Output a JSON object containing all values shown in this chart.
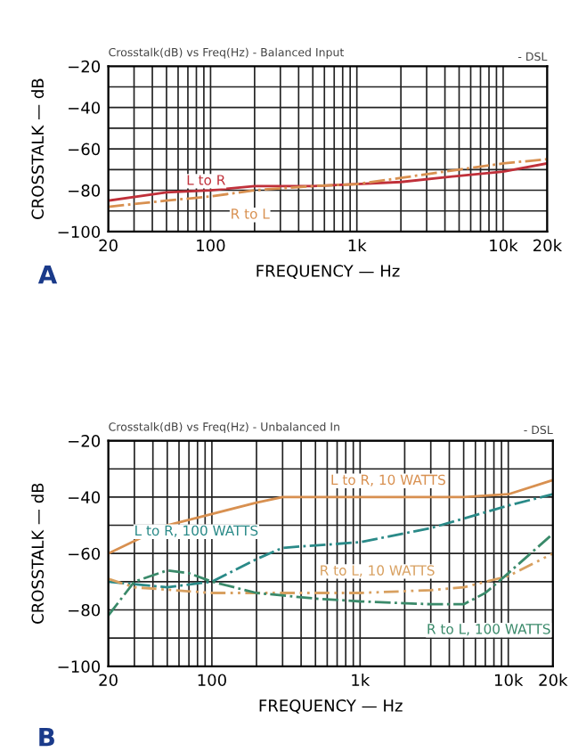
{
  "chart_data": [
    {
      "type": "line",
      "title": "Crosstalk(dB) vs Freq(Hz) - Balanced Input",
      "xlabel": "FREQUENCY — Hz",
      "ylabel": "CROSSTALK — dB",
      "log": "x",
      "grid": true,
      "legend": false,
      "xlim": [
        20,
        20000
      ],
      "ylim": [
        -100,
        -20
      ],
      "xticks": [
        {
          "value": 20,
          "label": "20"
        },
        {
          "value": 30,
          "label": null
        },
        {
          "value": 40,
          "label": null
        },
        {
          "value": 50,
          "label": null
        },
        {
          "value": 60,
          "label": null
        },
        {
          "value": 70,
          "label": null
        },
        {
          "value": 80,
          "label": null
        },
        {
          "value": 90,
          "label": null
        },
        {
          "value": 100,
          "label": "100"
        },
        {
          "value": 200,
          "label": null
        },
        {
          "value": 300,
          "label": null
        },
        {
          "value": 400,
          "label": null
        },
        {
          "value": 500,
          "label": null
        },
        {
          "value": 600,
          "label": null
        },
        {
          "value": 700,
          "label": null
        },
        {
          "value": 800,
          "label": null
        },
        {
          "value": 900,
          "label": null
        },
        {
          "value": 1000,
          "label": "1k"
        },
        {
          "value": 2000,
          "label": null
        },
        {
          "value": 3000,
          "label": null
        },
        {
          "value": 4000,
          "label": null
        },
        {
          "value": 5000,
          "label": null
        },
        {
          "value": 6000,
          "label": null
        },
        {
          "value": 7000,
          "label": null
        },
        {
          "value": 8000,
          "label": null
        },
        {
          "value": 9000,
          "label": null
        },
        {
          "value": 10000,
          "label": "10k"
        },
        {
          "value": 20000,
          "label": "20k"
        }
      ],
      "yticks": [
        -100,
        {
          "value": -90,
          "label": null
        },
        -80,
        {
          "value": -70,
          "label": null
        },
        -60,
        {
          "value": -50,
          "label": null
        },
        -40,
        {
          "value": -30,
          "label": null
        },
        -20
      ],
      "series": [
        {
          "color": "#c0303a",
          "line_style": "solid",
          "x": [
            20,
            50,
            100,
            200,
            500,
            1000,
            2000,
            5000,
            10000,
            20000
          ],
          "values": [
            -85,
            -81,
            -80,
            -78,
            -78,
            -77,
            -76,
            -73,
            -71,
            -67
          ]
        },
        {
          "color": "#d89050",
          "line_style": "dashed",
          "x": [
            20,
            50,
            100,
            200,
            500,
            1000,
            2000,
            5000,
            10000,
            20000
          ],
          "values": [
            -88,
            -85,
            -83,
            -80,
            -78,
            -77,
            -74,
            -70,
            -67,
            -65
          ]
        }
      ],
      "annotations": [
        {
          "text": "L to R",
          "x": 50,
          "y": -81
        },
        {
          "text": "R to L",
          "x": 100,
          "y": -83
        },
        "- DSL",
        "A"
      ]
    },
    {
      "type": "line",
      "title": "Crosstalk(dB) vs Freq(Hz) - Unbalanced In",
      "xlabel": "FREQUENCY — Hz",
      "ylabel": "CROSSTALK — dB",
      "log": "x",
      "grid": true,
      "legend": false,
      "xlim": [
        20,
        20000
      ],
      "ylim": [
        -100,
        -20
      ],
      "xticks": [
        {
          "value": 20,
          "label": "20"
        },
        {
          "value": 30,
          "label": null
        },
        {
          "value": 40,
          "label": null
        },
        {
          "value": 50,
          "label": null
        },
        {
          "value": 60,
          "label": null
        },
        {
          "value": 70,
          "label": null
        },
        {
          "value": 80,
          "label": null
        },
        {
          "value": 90,
          "label": null
        },
        {
          "value": 100,
          "label": "100"
        },
        {
          "value": 200,
          "label": null
        },
        {
          "value": 300,
          "label": null
        },
        {
          "value": 400,
          "label": null
        },
        {
          "value": 500,
          "label": null
        },
        {
          "value": 600,
          "label": null
        },
        {
          "value": 700,
          "label": null
        },
        {
          "value": 800,
          "label": null
        },
        {
          "value": 900,
          "label": null
        },
        {
          "value": 1000,
          "label": "1k"
        },
        {
          "value": 2000,
          "label": null
        },
        {
          "value": 3000,
          "label": null
        },
        {
          "value": 4000,
          "label": null
        },
        {
          "value": 5000,
          "label": null
        },
        {
          "value": 6000,
          "label": null
        },
        {
          "value": 7000,
          "label": null
        },
        {
          "value": 8000,
          "label": null
        },
        {
          "value": 9000,
          "label": null
        },
        {
          "value": 10000,
          "label": "10k"
        },
        {
          "value": 20000,
          "label": "20k"
        }
      ],
      "yticks": [
        -100,
        {
          "value": -90,
          "label": null
        },
        -80,
        {
          "value": -70,
          "label": null
        },
        -60,
        {
          "value": -50,
          "label": null
        },
        -40,
        {
          "value": -30,
          "label": null
        },
        -20
      ],
      "series": [
        {
          "color": "#d89050",
          "line_style": "solid",
          "x": [
            20,
            50,
            100,
            200,
            300,
            1000,
            5000,
            10000,
            20000
          ],
          "values": [
            -60,
            -50,
            -46,
            -42,
            -40,
            -40,
            -40,
            -39,
            -34
          ]
        },
        {
          "color": "#2a8a88",
          "line_style": "dashed",
          "x": [
            20,
            50,
            100,
            200,
            300,
            1000,
            3000,
            10000,
            20000
          ],
          "values": [
            -70,
            -72,
            -70,
            -62,
            -58,
            -56,
            -51,
            -43,
            -39
          ]
        },
        {
          "color": "#d8a060",
          "line_style": "dotted",
          "x": [
            20,
            30,
            100,
            300,
            1000,
            3000,
            5000,
            10000,
            20000
          ],
          "values": [
            -69,
            -72,
            -74,
            -74,
            -74,
            -73,
            -72,
            -68,
            -60
          ]
        },
        {
          "color": "#3a8a6a",
          "line_style": "dashed",
          "x": [
            20,
            30,
            50,
            70,
            100,
            200,
            500,
            1000,
            3000,
            5000,
            7000,
            10000,
            20000
          ],
          "values": [
            -82,
            -70,
            -66,
            -67,
            -70,
            -74,
            -76,
            -77,
            -78,
            -78,
            -74,
            -67,
            -53
          ]
        }
      ],
      "annotations": [
        {
          "text": "L to R, 10 WATTS",
          "x": 1000,
          "y": -40
        },
        {
          "text": "L to R, 100 WATTS",
          "x": 300,
          "y": -58
        },
        {
          "text": "R to L, 10 WATTS",
          "x": 3000,
          "y": -73
        },
        {
          "text": "R to L, 100 WATTS",
          "x": 5000,
          "y": -78
        },
        "- DSL",
        "B"
      ]
    }
  ]
}
